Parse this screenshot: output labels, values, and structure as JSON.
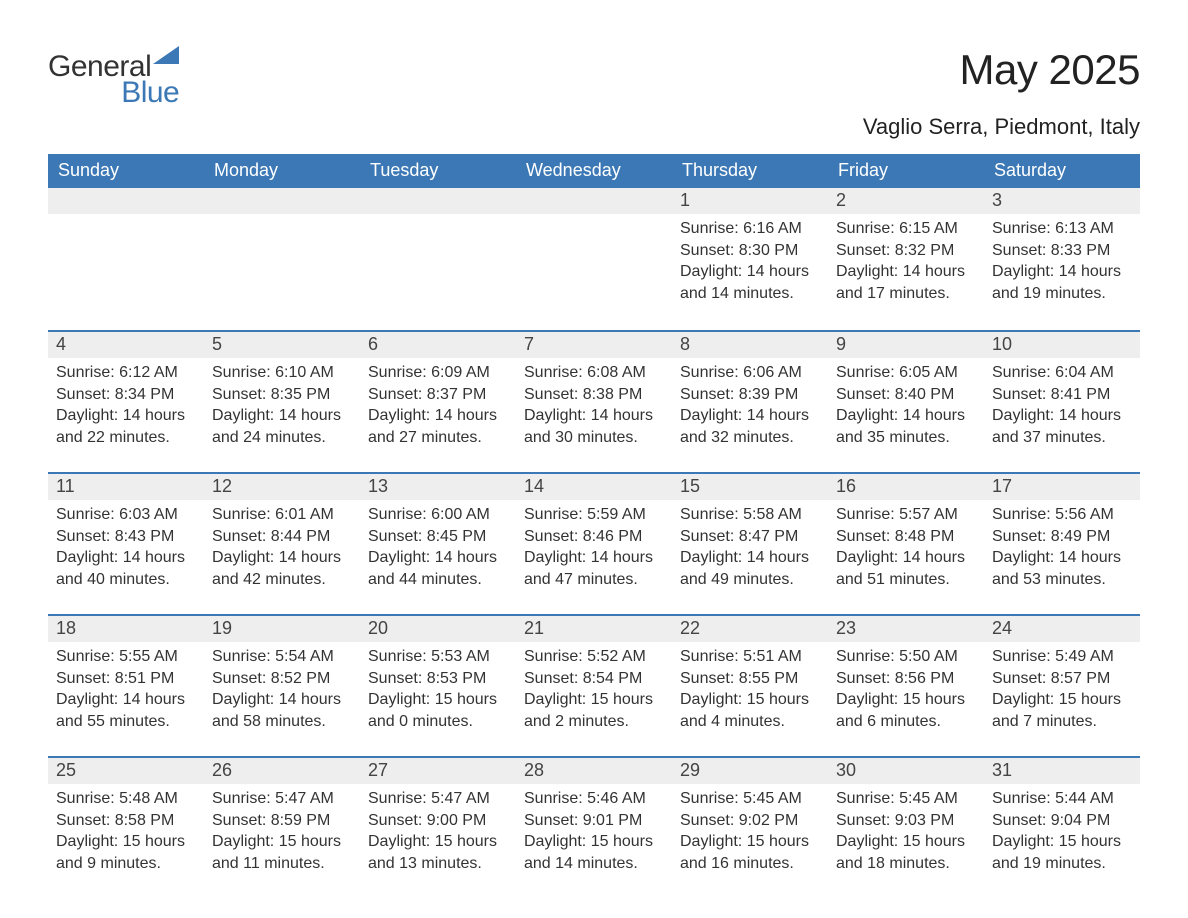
{
  "logo": {
    "text_main": "General",
    "text_accent": "Blue",
    "accent_color": "#3b78b5"
  },
  "title": "May 2025",
  "subtitle": "Vaglio Serra, Piedmont, Italy",
  "colors": {
    "header_bg": "#3b78b5",
    "header_text": "#ffffff",
    "daynum_bg": "#eeeeee",
    "border_top": "#3b78b5",
    "body_text": "#333333",
    "page_bg": "#ffffff"
  },
  "day_labels": [
    "Sunday",
    "Monday",
    "Tuesday",
    "Wednesday",
    "Thursday",
    "Friday",
    "Saturday"
  ],
  "labels": {
    "sunrise": "Sunrise: ",
    "sunset": "Sunset: ",
    "daylight": "Daylight: "
  },
  "weeks": [
    [
      null,
      null,
      null,
      null,
      {
        "num": "1",
        "sunrise": "6:16 AM",
        "sunset": "8:30 PM",
        "daylight": "14 hours and 14 minutes."
      },
      {
        "num": "2",
        "sunrise": "6:15 AM",
        "sunset": "8:32 PM",
        "daylight": "14 hours and 17 minutes."
      },
      {
        "num": "3",
        "sunrise": "6:13 AM",
        "sunset": "8:33 PM",
        "daylight": "14 hours and 19 minutes."
      }
    ],
    [
      {
        "num": "4",
        "sunrise": "6:12 AM",
        "sunset": "8:34 PM",
        "daylight": "14 hours and 22 minutes."
      },
      {
        "num": "5",
        "sunrise": "6:10 AM",
        "sunset": "8:35 PM",
        "daylight": "14 hours and 24 minutes."
      },
      {
        "num": "6",
        "sunrise": "6:09 AM",
        "sunset": "8:37 PM",
        "daylight": "14 hours and 27 minutes."
      },
      {
        "num": "7",
        "sunrise": "6:08 AM",
        "sunset": "8:38 PM",
        "daylight": "14 hours and 30 minutes."
      },
      {
        "num": "8",
        "sunrise": "6:06 AM",
        "sunset": "8:39 PM",
        "daylight": "14 hours and 32 minutes."
      },
      {
        "num": "9",
        "sunrise": "6:05 AM",
        "sunset": "8:40 PM",
        "daylight": "14 hours and 35 minutes."
      },
      {
        "num": "10",
        "sunrise": "6:04 AM",
        "sunset": "8:41 PM",
        "daylight": "14 hours and 37 minutes."
      }
    ],
    [
      {
        "num": "11",
        "sunrise": "6:03 AM",
        "sunset": "8:43 PM",
        "daylight": "14 hours and 40 minutes."
      },
      {
        "num": "12",
        "sunrise": "6:01 AM",
        "sunset": "8:44 PM",
        "daylight": "14 hours and 42 minutes."
      },
      {
        "num": "13",
        "sunrise": "6:00 AM",
        "sunset": "8:45 PM",
        "daylight": "14 hours and 44 minutes."
      },
      {
        "num": "14",
        "sunrise": "5:59 AM",
        "sunset": "8:46 PM",
        "daylight": "14 hours and 47 minutes."
      },
      {
        "num": "15",
        "sunrise": "5:58 AM",
        "sunset": "8:47 PM",
        "daylight": "14 hours and 49 minutes."
      },
      {
        "num": "16",
        "sunrise": "5:57 AM",
        "sunset": "8:48 PM",
        "daylight": "14 hours and 51 minutes."
      },
      {
        "num": "17",
        "sunrise": "5:56 AM",
        "sunset": "8:49 PM",
        "daylight": "14 hours and 53 minutes."
      }
    ],
    [
      {
        "num": "18",
        "sunrise": "5:55 AM",
        "sunset": "8:51 PM",
        "daylight": "14 hours and 55 minutes."
      },
      {
        "num": "19",
        "sunrise": "5:54 AM",
        "sunset": "8:52 PM",
        "daylight": "14 hours and 58 minutes."
      },
      {
        "num": "20",
        "sunrise": "5:53 AM",
        "sunset": "8:53 PM",
        "daylight": "15 hours and 0 minutes."
      },
      {
        "num": "21",
        "sunrise": "5:52 AM",
        "sunset": "8:54 PM",
        "daylight": "15 hours and 2 minutes."
      },
      {
        "num": "22",
        "sunrise": "5:51 AM",
        "sunset": "8:55 PM",
        "daylight": "15 hours and 4 minutes."
      },
      {
        "num": "23",
        "sunrise": "5:50 AM",
        "sunset": "8:56 PM",
        "daylight": "15 hours and 6 minutes."
      },
      {
        "num": "24",
        "sunrise": "5:49 AM",
        "sunset": "8:57 PM",
        "daylight": "15 hours and 7 minutes."
      }
    ],
    [
      {
        "num": "25",
        "sunrise": "5:48 AM",
        "sunset": "8:58 PM",
        "daylight": "15 hours and 9 minutes."
      },
      {
        "num": "26",
        "sunrise": "5:47 AM",
        "sunset": "8:59 PM",
        "daylight": "15 hours and 11 minutes."
      },
      {
        "num": "27",
        "sunrise": "5:47 AM",
        "sunset": "9:00 PM",
        "daylight": "15 hours and 13 minutes."
      },
      {
        "num": "28",
        "sunrise": "5:46 AM",
        "sunset": "9:01 PM",
        "daylight": "15 hours and 14 minutes."
      },
      {
        "num": "29",
        "sunrise": "5:45 AM",
        "sunset": "9:02 PM",
        "daylight": "15 hours and 16 minutes."
      },
      {
        "num": "30",
        "sunrise": "5:45 AM",
        "sunset": "9:03 PM",
        "daylight": "15 hours and 18 minutes."
      },
      {
        "num": "31",
        "sunrise": "5:44 AM",
        "sunset": "9:04 PM",
        "daylight": "15 hours and 19 minutes."
      }
    ]
  ]
}
